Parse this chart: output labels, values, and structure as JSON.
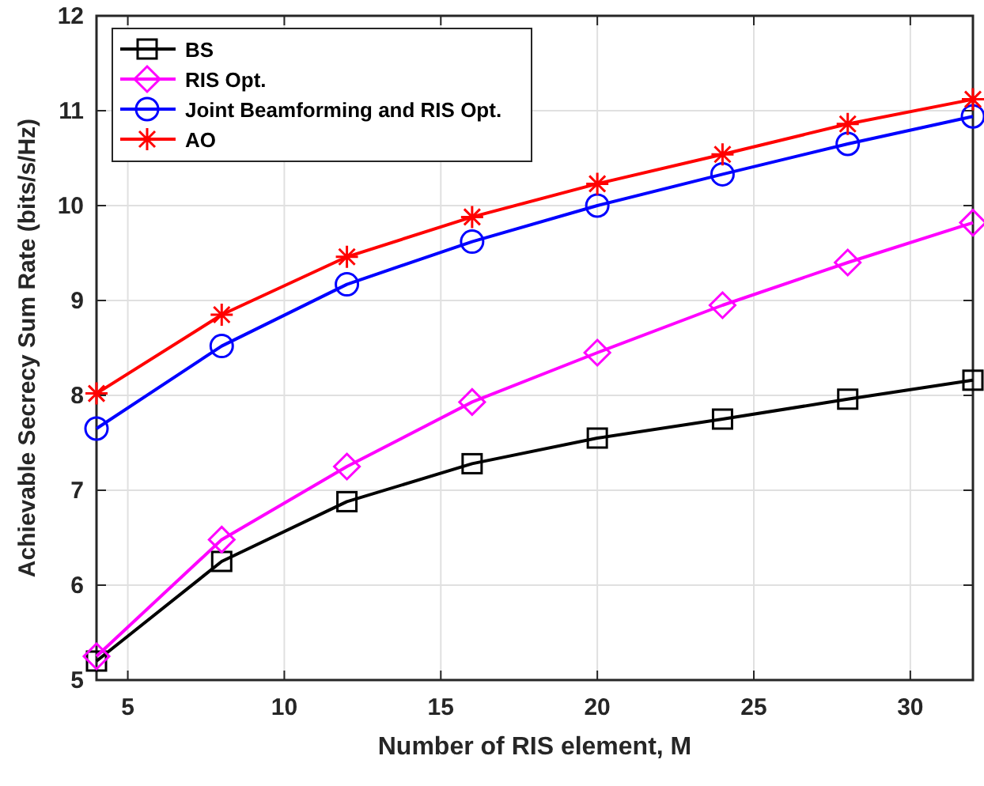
{
  "chart_data": {
    "type": "line",
    "xlabel": "Number of RIS element, M",
    "ylabel": "Achievable Secrecy Sum Rate (bits/s/Hz)",
    "x": [
      4,
      8,
      12,
      16,
      20,
      24,
      28,
      32
    ],
    "series": [
      {
        "name": "BS",
        "color": "#000000",
        "marker": "square",
        "values": [
          5.2,
          6.25,
          6.88,
          7.28,
          7.55,
          7.75,
          7.96,
          8.16
        ]
      },
      {
        "name": "RIS Opt.",
        "color": "#ff00ff",
        "marker": "diamond",
        "values": [
          5.25,
          6.48,
          7.25,
          7.93,
          8.45,
          8.95,
          9.4,
          9.82
        ]
      },
      {
        "name": "Joint Beamforming and RIS Opt.",
        "color": "#0000ff",
        "marker": "circle",
        "values": [
          7.65,
          8.52,
          9.17,
          9.62,
          10.0,
          10.33,
          10.65,
          10.94
        ]
      },
      {
        "name": "AO",
        "color": "#ff0000",
        "marker": "cross",
        "values": [
          8.02,
          8.85,
          9.46,
          9.88,
          10.23,
          10.54,
          10.86,
          11.12
        ]
      }
    ],
    "xlim": [
      4,
      32
    ],
    "xticks": [
      5,
      10,
      15,
      20,
      25,
      30
    ],
    "ylim": [
      5,
      12
    ],
    "yticks": [
      5,
      6,
      7,
      8,
      9,
      10,
      11,
      12
    ],
    "grid": true,
    "legend": "top left",
    "line_style": "solid"
  }
}
